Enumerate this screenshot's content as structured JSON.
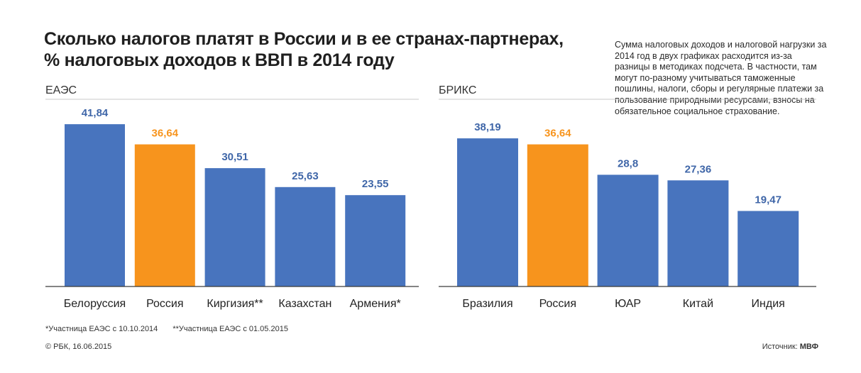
{
  "title_line1": "Сколько налогов платят в России и в ее странах-партнерах,",
  "title_line2": "% налоговых доходов к ВВП в 2014 году",
  "note": "Сумма налоговых доходов и налоговой нагрузки за 2014 год в двух графиках расходится из-за разницы в методиках подсчета. В частности, там могут по-разному учитываться таможенные пошлины, налоги, сборы и регулярные платежи за пользование природными ресурсами, взносы на обязательное социальное страхование.",
  "footnote1": "*Участница ЕАЭС с 10.10.2014",
  "footnote2": "**Участница ЕАЭС с 01.05.2015",
  "credit": "© РБК, 16.06.2015",
  "source_prefix": "Источник: ",
  "source_name": "МВФ",
  "colors": {
    "default_bar": "#4874be",
    "highlight_bar": "#f7941d",
    "default_label": "#3f66a8",
    "highlight_label": "#f7941d"
  },
  "chart_data": [
    {
      "type": "bar",
      "title": "ЕАЭС",
      "categories": [
        "Белоруссия",
        "Россия",
        "Киргизия**",
        "Казахстан",
        "Армения*"
      ],
      "values": [
        41.84,
        36.64,
        30.51,
        25.63,
        23.55
      ],
      "labels": [
        "41,84",
        "36,64",
        "30,51",
        "25,63",
        "23,55"
      ],
      "highlight": "Россия",
      "ylim": [
        0,
        50
      ]
    },
    {
      "type": "bar",
      "title": "БРИКС",
      "categories": [
        "Бразилия",
        "Россия",
        "ЮАР",
        "Китай",
        "Индия"
      ],
      "values": [
        38.19,
        36.64,
        28.8,
        27.36,
        19.47
      ],
      "labels": [
        "38,19",
        "36,64",
        "28,8",
        "27,36",
        "19,47"
      ],
      "highlight": "Россия",
      "ylim": [
        0,
        50
      ]
    }
  ]
}
